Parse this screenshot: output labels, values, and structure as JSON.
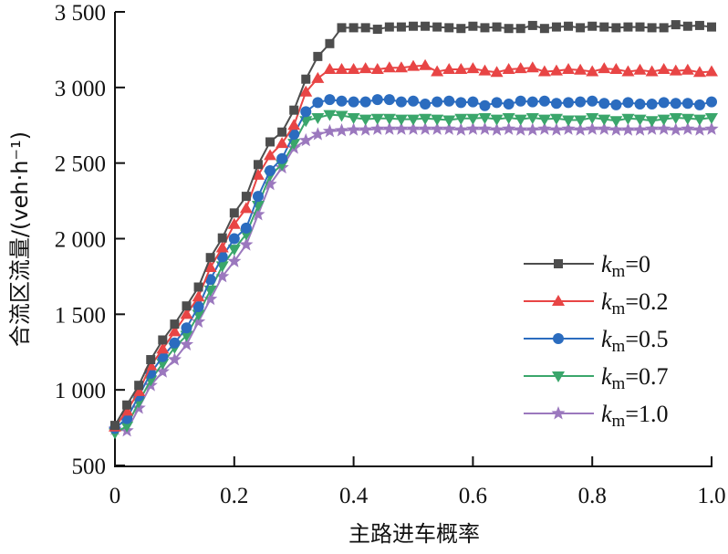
{
  "chart_data": {
    "type": "line",
    "title": "",
    "xlabel": "主路进车概率",
    "ylabel": "合流区流量/(veh·h⁻¹)",
    "xlim": [
      0,
      1.0
    ],
    "ylim": [
      500,
      3500
    ],
    "xticks": [
      0,
      0.2,
      0.4,
      0.6,
      0.8,
      1.0
    ],
    "xtick_labels": [
      "0",
      "0.2",
      "0.4",
      "0.6",
      "0.8",
      "1.0"
    ],
    "yticks": [
      500,
      1000,
      1500,
      2000,
      2500,
      3000,
      3500
    ],
    "ytick_labels": [
      "500",
      "1 000",
      "1 500",
      "2 000",
      "2 500",
      "3 000",
      "3 500"
    ],
    "grid": false,
    "legend_position": "center-right",
    "x": [
      0,
      0.02,
      0.04,
      0.06,
      0.08,
      0.1,
      0.12,
      0.14,
      0.16,
      0.18,
      0.2,
      0.22,
      0.24,
      0.26,
      0.28,
      0.3,
      0.32,
      0.34,
      0.36,
      0.38,
      0.4,
      0.42,
      0.44,
      0.46,
      0.48,
      0.5,
      0.52,
      0.54,
      0.56,
      0.58,
      0.6,
      0.62,
      0.64,
      0.66,
      0.68,
      0.7,
      0.72,
      0.74,
      0.76,
      0.78,
      0.8,
      0.82,
      0.84,
      0.86,
      0.88,
      0.9,
      0.92,
      0.94,
      0.96,
      0.98,
      1.0
    ],
    "series": [
      {
        "name": "k_m=0",
        "label_main": "k",
        "label_sub": "m",
        "label_value": "=0",
        "color": "#4d4d4d",
        "marker": "square",
        "values": [
          765,
          900,
          1030,
          1200,
          1330,
          1435,
          1555,
          1680,
          1875,
          2005,
          2170,
          2280,
          2490,
          2640,
          2705,
          2850,
          3055,
          3205,
          3290,
          3395,
          3395,
          3395,
          3385,
          3400,
          3400,
          3405,
          3405,
          3400,
          3395,
          3390,
          3405,
          3395,
          3400,
          3390,
          3390,
          3410,
          3390,
          3400,
          3405,
          3395,
          3405,
          3400,
          3395,
          3400,
          3400,
          3395,
          3395,
          3415,
          3405,
          3410,
          3400
        ]
      },
      {
        "name": "k_m=0.2",
        "label_main": "k",
        "label_sub": "m",
        "label_value": "=0.2",
        "color": "#e84545",
        "marker": "triangle-up",
        "values": [
          755,
          860,
          990,
          1160,
          1270,
          1385,
          1500,
          1615,
          1810,
          1940,
          2095,
          2200,
          2420,
          2550,
          2630,
          2750,
          2970,
          3060,
          3120,
          3120,
          3120,
          3125,
          3120,
          3130,
          3130,
          3140,
          3145,
          3105,
          3120,
          3120,
          3125,
          3110,
          3100,
          3120,
          3125,
          3130,
          3105,
          3110,
          3120,
          3115,
          3105,
          3125,
          3120,
          3105,
          3115,
          3105,
          3120,
          3110,
          3115,
          3100,
          3105
        ]
      },
      {
        "name": "k_m=0.5",
        "label_main": "k",
        "label_sub": "m",
        "label_value": "=0.5",
        "color": "#2b6cbf",
        "marker": "circle",
        "values": [
          745,
          810,
          960,
          1110,
          1220,
          1310,
          1410,
          1550,
          1730,
          1880,
          2000,
          2070,
          2280,
          2450,
          2530,
          2690,
          2840,
          2900,
          2920,
          2910,
          2905,
          2905,
          2920,
          2920,
          2905,
          2910,
          2890,
          2905,
          2910,
          2900,
          2905,
          2880,
          2900,
          2890,
          2910,
          2905,
          2910,
          2895,
          2900,
          2905,
          2910,
          2895,
          2885,
          2900,
          2890,
          2890,
          2900,
          2895,
          2895,
          2885,
          2905
        ]
      },
      {
        "name": "k_m=0.7",
        "label_main": "k",
        "label_sub": "m",
        "label_value": "=0.7",
        "color": "#3aa66b",
        "marker": "triangle-down",
        "values": [
          715,
          760,
          920,
          1065,
          1175,
          1280,
          1360,
          1500,
          1660,
          1820,
          1930,
          2030,
          2220,
          2420,
          2490,
          2630,
          2780,
          2800,
          2820,
          2815,
          2800,
          2790,
          2795,
          2795,
          2790,
          2790,
          2795,
          2790,
          2785,
          2795,
          2795,
          2800,
          2790,
          2800,
          2790,
          2800,
          2790,
          2795,
          2785,
          2785,
          2800,
          2790,
          2780,
          2795,
          2790,
          2780,
          2790,
          2800,
          2795,
          2790,
          2800
        ]
      },
      {
        "name": "k_m=1.0",
        "label_main": "k",
        "label_sub": "m",
        "label_value": "=1.0",
        "color": "#9b78be",
        "marker": "star",
        "values": [
          740,
          730,
          880,
          1030,
          1120,
          1200,
          1300,
          1450,
          1600,
          1750,
          1850,
          1960,
          2160,
          2360,
          2470,
          2600,
          2650,
          2690,
          2710,
          2715,
          2720,
          2720,
          2725,
          2725,
          2725,
          2725,
          2725,
          2725,
          2725,
          2720,
          2725,
          2725,
          2720,
          2725,
          2720,
          2720,
          2725,
          2720,
          2725,
          2720,
          2725,
          2725,
          2720,
          2720,
          2720,
          2725,
          2725,
          2720,
          2725,
          2720,
          2725
        ]
      }
    ]
  }
}
